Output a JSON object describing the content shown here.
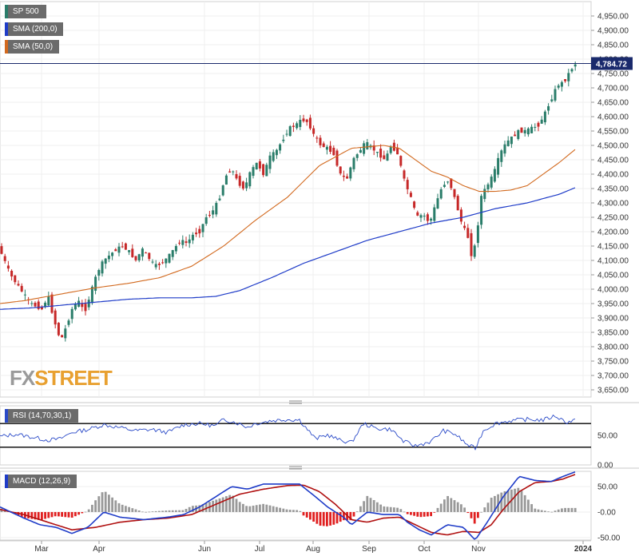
{
  "chart_data": [
    {
      "type": "line",
      "title": "SP 500",
      "legend": [
        "SP 500",
        "SMA (200,0)",
        "SMA (50,0)"
      ],
      "x_ticks": [
        "Mar",
        "Apr",
        "Jun",
        "Jul",
        "Aug",
        "Sep",
        "Oct",
        "Nov",
        "2024"
      ],
      "ylim": [
        3625,
        5000
      ],
      "y_ticks": [
        "3,650.00",
        "3,700.00",
        "3,750.00",
        "3,800.00",
        "3,850.00",
        "3,900.00",
        "3,950.00",
        "4,000.00",
        "4,050.00",
        "4,100.00",
        "4,150.00",
        "4,200.00",
        "4,250.00",
        "4,300.00",
        "4,350.00",
        "4,400.00",
        "4,450.00",
        "4,500.00",
        "4,550.00",
        "4,600.00",
        "4,650.00",
        "4,700.00",
        "4,750.00",
        "4,800.00",
        "4,850.00",
        "4,900.00",
        "4,950.00"
      ],
      "last_price": 4784.72,
      "last_price_label": "4,784.72",
      "price_anchors": [
        [
          0,
          4150
        ],
        [
          15,
          4050
        ],
        [
          30,
          3990
        ],
        [
          40,
          3950
        ],
        [
          48,
          3940
        ],
        [
          55,
          3930
        ],
        [
          62,
          3980
        ],
        [
          70,
          3890
        ],
        [
          78,
          3820
        ],
        [
          85,
          3870
        ],
        [
          92,
          3930
        ],
        [
          100,
          3960
        ],
        [
          108,
          3920
        ],
        [
          116,
          3990
        ],
        [
          124,
          4060
        ],
        [
          132,
          4100
        ],
        [
          140,
          4120
        ],
        [
          148,
          4140
        ],
        [
          156,
          4150
        ],
        [
          164,
          4130
        ],
        [
          172,
          4100
        ],
        [
          180,
          4140
        ],
        [
          188,
          4110
        ],
        [
          196,
          4080
        ],
        [
          204,
          4090
        ],
        [
          212,
          4110
        ],
        [
          220,
          4140
        ],
        [
          228,
          4170
        ],
        [
          236,
          4160
        ],
        [
          244,
          4190
        ],
        [
          252,
          4200
        ],
        [
          260,
          4250
        ],
        [
          268,
          4270
        ],
        [
          276,
          4310
        ],
        [
          284,
          4390
        ],
        [
          292,
          4420
        ],
        [
          300,
          4370
        ],
        [
          308,
          4350
        ],
        [
          316,
          4410
        ],
        [
          324,
          4440
        ],
        [
          332,
          4400
        ],
        [
          340,
          4460
        ],
        [
          348,
          4480
        ],
        [
          356,
          4520
        ],
        [
          364,
          4560
        ],
        [
          372,
          4570
        ],
        [
          380,
          4590
        ],
        [
          388,
          4580
        ],
        [
          396,
          4530
        ],
        [
          404,
          4500
        ],
        [
          412,
          4490
        ],
        [
          420,
          4470
        ],
        [
          428,
          4400
        ],
        [
          436,
          4380
        ],
        [
          444,
          4450
        ],
        [
          452,
          4480
        ],
        [
          460,
          4510
        ],
        [
          468,
          4490
        ],
        [
          476,
          4470
        ],
        [
          484,
          4450
        ],
        [
          492,
          4500
        ],
        [
          500,
          4470
        ],
        [
          508,
          4380
        ],
        [
          516,
          4320
        ],
        [
          524,
          4250
        ],
        [
          532,
          4260
        ],
        [
          540,
          4230
        ],
        [
          548,
          4300
        ],
        [
          556,
          4360
        ],
        [
          564,
          4380
        ],
        [
          572,
          4310
        ],
        [
          580,
          4230
        ],
        [
          588,
          4180
        ],
        [
          592,
          4120
        ],
        [
          598,
          4160
        ],
        [
          604,
          4320
        ],
        [
          612,
          4360
        ],
        [
          620,
          4400
        ],
        [
          628,
          4470
        ],
        [
          636,
          4510
        ],
        [
          644,
          4530
        ],
        [
          652,
          4550
        ],
        [
          660,
          4550
        ],
        [
          668,
          4560
        ],
        [
          676,
          4570
        ],
        [
          684,
          4610
        ],
        [
          692,
          4660
        ],
        [
          700,
          4710
        ],
        [
          708,
          4720
        ],
        [
          716,
          4760
        ],
        [
          722,
          4784
        ]
      ],
      "sma200_anchors": [
        [
          0,
          3930
        ],
        [
          40,
          3935
        ],
        [
          80,
          3945
        ],
        [
          120,
          3955
        ],
        [
          160,
          3965
        ],
        [
          200,
          3970
        ],
        [
          240,
          3970
        ],
        [
          270,
          3975
        ],
        [
          300,
          3995
        ],
        [
          340,
          4040
        ],
        [
          380,
          4090
        ],
        [
          420,
          4130
        ],
        [
          460,
          4170
        ],
        [
          500,
          4200
        ],
        [
          540,
          4230
        ],
        [
          580,
          4250
        ],
        [
          620,
          4280
        ],
        [
          660,
          4300
        ],
        [
          700,
          4330
        ],
        [
          722,
          4355
        ]
      ],
      "sma50_anchors": [
        [
          0,
          3950
        ],
        [
          30,
          3960
        ],
        [
          60,
          3975
        ],
        [
          90,
          3990
        ],
        [
          120,
          4005
        ],
        [
          160,
          4020
        ],
        [
          200,
          4040
        ],
        [
          240,
          4080
        ],
        [
          280,
          4150
        ],
        [
          320,
          4240
        ],
        [
          360,
          4320
        ],
        [
          400,
          4430
        ],
        [
          440,
          4490
        ],
        [
          480,
          4500
        ],
        [
          500,
          4490
        ],
        [
          520,
          4450
        ],
        [
          540,
          4410
        ],
        [
          560,
          4390
        ],
        [
          580,
          4360
        ],
        [
          600,
          4340
        ],
        [
          620,
          4340
        ],
        [
          640,
          4345
        ],
        [
          660,
          4360
        ],
        [
          680,
          4400
        ],
        [
          700,
          4440
        ],
        [
          722,
          4490
        ]
      ]
    },
    {
      "type": "line",
      "title": "RSI (14,70,30,1)",
      "ylim": [
        0,
        100
      ],
      "y_ticks": [
        "50.00",
        "0.00"
      ],
      "levels": [
        70,
        30
      ],
      "rsi_anchors": [
        [
          0,
          48
        ],
        [
          20,
          52
        ],
        [
          40,
          47
        ],
        [
          60,
          42
        ],
        [
          75,
          44
        ],
        [
          90,
          55
        ],
        [
          110,
          60
        ],
        [
          130,
          68
        ],
        [
          150,
          63
        ],
        [
          170,
          58
        ],
        [
          190,
          60
        ],
        [
          210,
          55
        ],
        [
          230,
          68
        ],
        [
          250,
          70
        ],
        [
          270,
          66
        ],
        [
          280,
          77
        ],
        [
          295,
          72
        ],
        [
          310,
          64
        ],
        [
          320,
          70
        ],
        [
          340,
          75
        ],
        [
          360,
          77
        ],
        [
          375,
          76
        ],
        [
          395,
          44
        ],
        [
          410,
          51
        ],
        [
          425,
          42
        ],
        [
          440,
          38
        ],
        [
          455,
          70
        ],
        [
          470,
          62
        ],
        [
          490,
          60
        ],
        [
          505,
          40
        ],
        [
          520,
          32
        ],
        [
          540,
          40
        ],
        [
          555,
          58
        ],
        [
          570,
          52
        ],
        [
          585,
          34
        ],
        [
          595,
          28
        ],
        [
          605,
          58
        ],
        [
          620,
          70
        ],
        [
          640,
          75
        ],
        [
          660,
          77
        ],
        [
          680,
          76
        ],
        [
          695,
          83
        ],
        [
          710,
          72
        ],
        [
          722,
          77
        ]
      ]
    },
    {
      "type": "bar",
      "title": "MACD (12,26,9)",
      "ylim": [
        -55,
        80
      ],
      "y_ticks": [
        "50.00",
        "-0.00",
        "-50.00"
      ],
      "macd_anchors": [
        [
          0,
          10
        ],
        [
          30,
          -12
        ],
        [
          50,
          -25
        ],
        [
          70,
          -30
        ],
        [
          90,
          -42
        ],
        [
          110,
          -30
        ],
        [
          130,
          0
        ],
        [
          150,
          -10
        ],
        [
          180,
          -15
        ],
        [
          210,
          -10
        ],
        [
          230,
          -5
        ],
        [
          250,
          10
        ],
        [
          270,
          30
        ],
        [
          290,
          50
        ],
        [
          310,
          45
        ],
        [
          330,
          55
        ],
        [
          350,
          55
        ],
        [
          375,
          55
        ],
        [
          395,
          30
        ],
        [
          410,
          10
        ],
        [
          430,
          -10
        ],
        [
          440,
          -25
        ],
        [
          460,
          0
        ],
        [
          480,
          -5
        ],
        [
          500,
          -5
        ],
        [
          510,
          -20
        ],
        [
          525,
          -35
        ],
        [
          540,
          -45
        ],
        [
          560,
          -25
        ],
        [
          580,
          -30
        ],
        [
          595,
          -55
        ],
        [
          610,
          -20
        ],
        [
          630,
          30
        ],
        [
          650,
          70
        ],
        [
          670,
          62
        ],
        [
          690,
          60
        ],
        [
          705,
          70
        ],
        [
          722,
          80
        ]
      ],
      "signal_anchors": [
        [
          0,
          5
        ],
        [
          30,
          -5
        ],
        [
          60,
          -20
        ],
        [
          90,
          -35
        ],
        [
          120,
          -30
        ],
        [
          150,
          -20
        ],
        [
          180,
          -15
        ],
        [
          210,
          -12
        ],
        [
          240,
          -5
        ],
        [
          270,
          15
        ],
        [
          300,
          35
        ],
        [
          330,
          45
        ],
        [
          360,
          52
        ],
        [
          380,
          53
        ],
        [
          400,
          40
        ],
        [
          420,
          15
        ],
        [
          440,
          -15
        ],
        [
          460,
          -20
        ],
        [
          480,
          -12
        ],
        [
          500,
          -10
        ],
        [
          520,
          -25
        ],
        [
          540,
          -40
        ],
        [
          560,
          -45
        ],
        [
          580,
          -38
        ],
        [
          600,
          -40
        ],
        [
          615,
          -25
        ],
        [
          630,
          5
        ],
        [
          650,
          40
        ],
        [
          670,
          58
        ],
        [
          690,
          60
        ],
        [
          705,
          65
        ],
        [
          722,
          75
        ]
      ]
    }
  ],
  "watermark": {
    "fx": "FX",
    "street": "STREET"
  },
  "colors": {
    "price": "#2a7d6a",
    "price_down": "#c62828",
    "sma200": "#1f3cc8",
    "sma50": "#d2691e",
    "rsi": "#2a4ac8",
    "macd": "#1f3cc8",
    "signal": "#b01010",
    "hist_pos": "#999999",
    "hist_neg": "#e02020"
  }
}
